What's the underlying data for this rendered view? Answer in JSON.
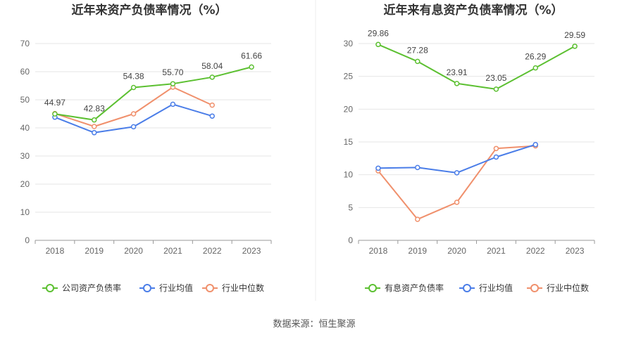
{
  "source_text": "数据来源：恒生聚源",
  "colors": {
    "green": "#5cc031",
    "blue": "#4a7de8",
    "orange": "#f0906c",
    "grid": "#e6e6e6",
    "axis": "#999999"
  },
  "chart_data": [
    {
      "type": "line",
      "title": "近年来资产负债率情况（%）",
      "categories": [
        "2018",
        "2019",
        "2020",
        "2021",
        "2022",
        "2023"
      ],
      "ylim": [
        0,
        70
      ],
      "yticks": [
        0,
        10,
        20,
        30,
        40,
        50,
        60,
        70
      ],
      "grid": true,
      "legend_position": "bottom",
      "series": [
        {
          "name": "公司资产负债率",
          "color": "#5cc031",
          "values": [
            44.97,
            42.83,
            54.38,
            55.7,
            58.04,
            61.66
          ],
          "labels": [
            "44.97",
            "42.83",
            "54.38",
            "55.70",
            "58.04",
            "61.66"
          ]
        },
        {
          "name": "行业均值",
          "color": "#4a7de8",
          "values": [
            43.8,
            38.3,
            40.4,
            48.4,
            44.2,
            null
          ]
        },
        {
          "name": "行业中位数",
          "color": "#f0906c",
          "values": [
            45.1,
            40.5,
            45.0,
            54.5,
            48.1,
            null
          ]
        }
      ]
    },
    {
      "type": "line",
      "title": "近年来有息资产负债率情况（%）",
      "categories": [
        "2018",
        "2019",
        "2020",
        "2021",
        "2022",
        "2023"
      ],
      "ylim": [
        0,
        30
      ],
      "yticks": [
        0,
        5,
        10,
        15,
        20,
        25,
        30
      ],
      "grid": true,
      "legend_position": "bottom",
      "series": [
        {
          "name": "有息资产负债率",
          "color": "#5cc031",
          "values": [
            29.86,
            27.28,
            23.91,
            23.05,
            26.29,
            29.59
          ],
          "labels": [
            "29.86",
            "27.28",
            "23.91",
            "23.05",
            "26.29",
            "29.59"
          ]
        },
        {
          "name": "行业均值",
          "color": "#4a7de8",
          "values": [
            11.0,
            11.1,
            10.3,
            12.7,
            14.6,
            null
          ]
        },
        {
          "name": "行业中位数",
          "color": "#f0906c",
          "values": [
            10.6,
            3.2,
            5.8,
            14.0,
            14.4,
            null
          ]
        }
      ]
    }
  ]
}
